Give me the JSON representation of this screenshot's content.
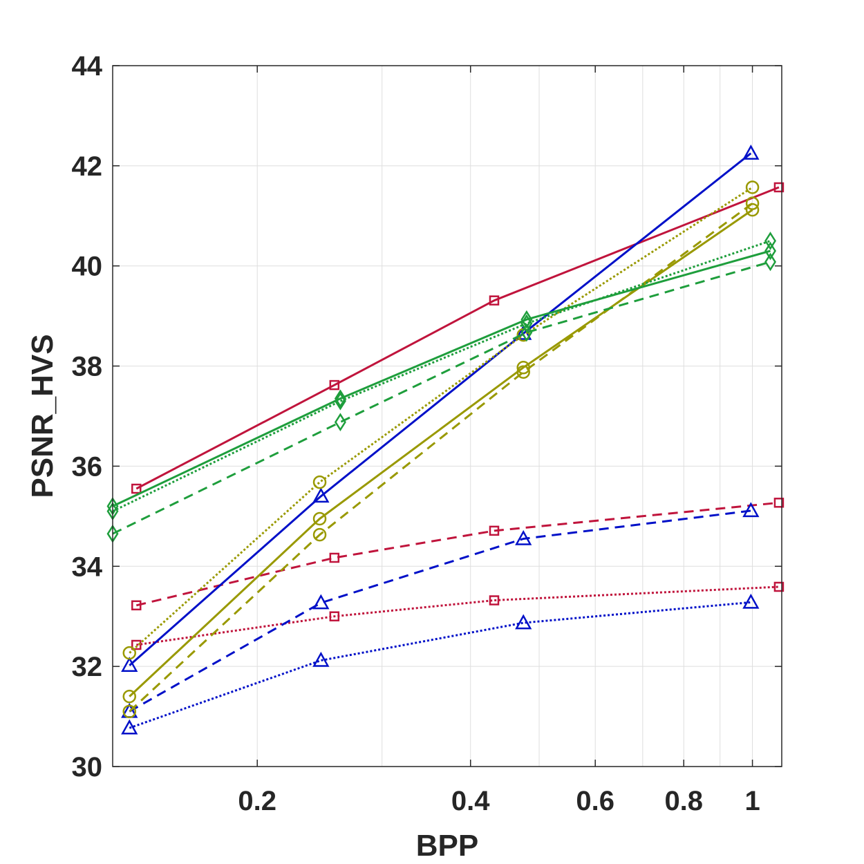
{
  "chart_data": {
    "type": "line",
    "title": "",
    "xlabel": "BPP",
    "ylabel": "PSNR_HVS",
    "xscale": "log",
    "xlim": [
      0.125,
      1.1
    ],
    "ylim": [
      30,
      44
    ],
    "grid": true,
    "xticks": [
      0.2,
      0.4,
      0.6,
      0.8,
      1
    ],
    "xtick_labels": [
      "0.2",
      "0.4",
      "0.6",
      "0.8",
      "1"
    ],
    "yticks": [
      30,
      32,
      34,
      36,
      38,
      40,
      42,
      44
    ],
    "ytick_labels": [
      "30",
      "32",
      "34",
      "36",
      "38",
      "40",
      "42",
      "44"
    ],
    "colors": {
      "red": "#c0143c",
      "blue": "#0010c8",
      "olive": "#999900",
      "green": "#1e9e3c"
    },
    "series": [
      {
        "name": "red-solid",
        "color": "red",
        "dash": "solid",
        "marker": "square",
        "x": [
          0.135,
          0.257,
          0.432,
          1.09
        ],
        "values": [
          35.55,
          37.62,
          39.31,
          41.57
        ]
      },
      {
        "name": "red-dashed",
        "color": "red",
        "dash": "dashed",
        "marker": "square",
        "x": [
          0.135,
          0.257,
          0.432,
          1.09
        ],
        "values": [
          33.22,
          34.17,
          34.71,
          35.27
        ]
      },
      {
        "name": "red-dotted",
        "color": "red",
        "dash": "dotted",
        "marker": "square",
        "x": [
          0.135,
          0.257,
          0.432,
          1.09
        ],
        "values": [
          32.43,
          33.0,
          33.32,
          33.59
        ]
      },
      {
        "name": "blue-solid",
        "color": "blue",
        "dash": "solid",
        "marker": "triangle",
        "x": [
          0.132,
          0.246,
          0.475,
          0.995
        ],
        "values": [
          32.02,
          35.4,
          38.65,
          42.25
        ]
      },
      {
        "name": "blue-dashed",
        "color": "blue",
        "dash": "dashed",
        "marker": "triangle",
        "x": [
          0.132,
          0.246,
          0.475,
          0.995
        ],
        "values": [
          31.1,
          33.27,
          34.55,
          35.11
        ]
      },
      {
        "name": "blue-dotted",
        "color": "blue",
        "dash": "dotted",
        "marker": "triangle",
        "x": [
          0.132,
          0.246,
          0.475,
          0.995
        ],
        "values": [
          30.77,
          32.12,
          32.87,
          33.28
        ]
      },
      {
        "name": "olive-solid",
        "color": "olive",
        "dash": "solid",
        "marker": "circle",
        "x": [
          0.132,
          0.245,
          0.475,
          1.0
        ],
        "values": [
          31.4,
          34.95,
          37.97,
          41.12
        ]
      },
      {
        "name": "olive-dashed",
        "color": "olive",
        "dash": "dashed",
        "marker": "circle",
        "x": [
          0.132,
          0.245,
          0.475,
          1.0
        ],
        "values": [
          31.1,
          34.63,
          37.88,
          41.25
        ]
      },
      {
        "name": "olive-dotted",
        "color": "olive",
        "dash": "dotted",
        "marker": "circle",
        "x": [
          0.132,
          0.245,
          0.475,
          1.0
        ],
        "values": [
          32.27,
          35.68,
          38.62,
          41.57
        ]
      },
      {
        "name": "green-solid",
        "color": "green",
        "dash": "solid",
        "marker": "diamond",
        "x": [
          0.125,
          0.262,
          0.48,
          1.06
        ],
        "values": [
          35.2,
          37.35,
          38.93,
          40.3
        ]
      },
      {
        "name": "green-dashed",
        "color": "green",
        "dash": "dashed",
        "marker": "diamond",
        "x": [
          0.125,
          0.262,
          0.48,
          1.06
        ],
        "values": [
          34.65,
          36.88,
          38.67,
          40.08
        ]
      },
      {
        "name": "green-dotted",
        "color": "green",
        "dash": "dotted",
        "marker": "diamond",
        "x": [
          0.125,
          0.262,
          0.48,
          1.06
        ],
        "values": [
          35.1,
          37.3,
          38.85,
          40.5
        ]
      }
    ]
  }
}
